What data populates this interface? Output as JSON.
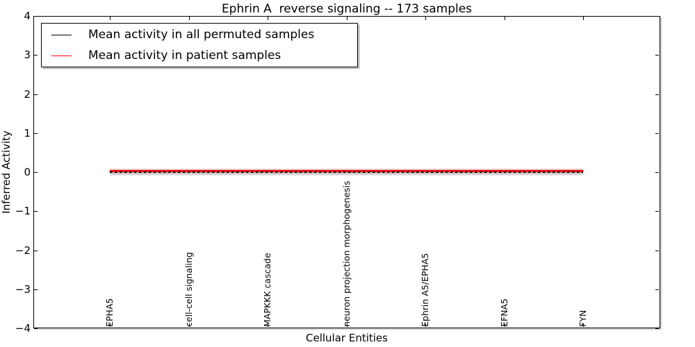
{
  "figure": {
    "title": "Ephrin A  reverse signaling -- 173 samples",
    "xlabel": "Cellular Entities",
    "ylabel": "Inferred Activity"
  },
  "chart_data": {
    "type": "line",
    "title": "Ephrin A  reverse signaling -- 173 samples",
    "xlabel": "Cellular Entities",
    "ylabel": "Inferred Activity",
    "categories": [
      "EPHA5",
      "cell-cell signaling",
      "MAPKKK cascade",
      "neuron projection morphogenesis",
      "Ephrin A5/EPHA5",
      "EFNA5",
      "FYN"
    ],
    "series": [
      {
        "name": "Mean activity in all permuted samples",
        "color": "#000000",
        "style": "dashed",
        "values": [
          0.0,
          0.0,
          0.0,
          0.0,
          0.0,
          0.0,
          0.0
        ]
      },
      {
        "name": "Mean activity in patient samples",
        "color": "#ff0000",
        "style": "solid",
        "values": [
          0.02,
          0.02,
          0.02,
          0.02,
          0.02,
          0.02,
          0.02
        ]
      }
    ],
    "permuted_band": {
      "min": -0.09,
      "max": 0.09,
      "color": "#cccccc"
    },
    "ylim": [
      -4,
      4
    ],
    "yticks": [
      4,
      3,
      2,
      1,
      0,
      -1,
      -2,
      -3,
      -4
    ],
    "ytick_labels": [
      "4",
      "3",
      "2",
      "1",
      "0",
      "−1",
      "−2",
      "−3",
      "−4"
    ],
    "grid": false,
    "legend_position": "upper left"
  }
}
